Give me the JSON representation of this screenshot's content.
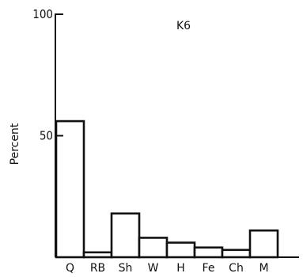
{
  "chart_data": {
    "type": "bar",
    "title": "K6",
    "xlabel": "",
    "ylabel": "Percent",
    "ylim": [
      0,
      100
    ],
    "yticks": [
      50,
      100
    ],
    "categories": [
      "Q",
      "RB",
      "Sh",
      "W",
      "H",
      "Fe",
      "Ch",
      "M"
    ],
    "values": [
      56,
      2,
      18,
      8,
      6,
      4,
      3,
      11
    ],
    "grid": false,
    "legend": "none",
    "bar_fill": "#ffffff",
    "bar_stroke": "#111111"
  }
}
